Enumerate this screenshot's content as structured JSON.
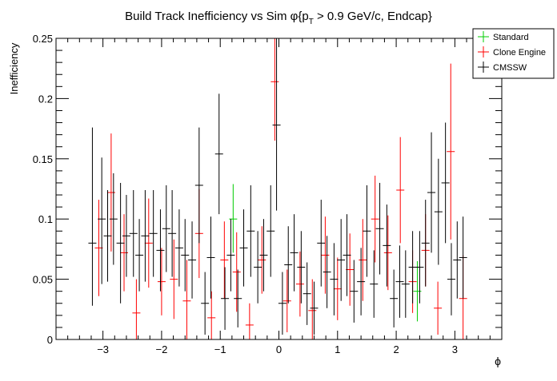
{
  "chart_data": {
    "type": "scatter",
    "title": "Build Track Inefficiency vs Sim φ{p",
    "title_sub": "T",
    "title_tail": " > 0.9 GeV/c, Endcap}",
    "xlabel": "ϕ",
    "ylabel": "Inefficiency",
    "xlim": [
      -3.8,
      3.8
    ],
    "ylim": [
      0,
      0.25
    ],
    "xticks": [
      -3,
      -2,
      -1,
      0,
      1,
      2,
      3
    ],
    "xtick_labels": [
      "−3",
      "−2",
      "−1",
      "0",
      "1",
      "2",
      "3"
    ],
    "yticks": [
      0,
      0.05,
      0.1,
      0.15,
      0.2,
      0.25
    ],
    "ytick_labels": [
      "0",
      "0.05",
      "0.1",
      "0.15",
      "0.2",
      "0.25"
    ],
    "legend_position": "top-right",
    "series": [
      {
        "name": "Standard",
        "color": "#00cc00",
        "points": [
          {
            "x": -0.78,
            "y": 0.1,
            "lo": 0.072,
            "hi": 0.129
          },
          {
            "x": 2.36,
            "y": 0.04,
            "lo": 0.015,
            "hi": 0.065
          }
        ]
      },
      {
        "name": "Clone Engine",
        "color": "#ff0000",
        "points": [
          {
            "x": -3.07,
            "y": 0.076,
            "lo": 0.036,
            "hi": 0.116
          },
          {
            "x": -2.86,
            "y": 0.122,
            "lo": 0.073,
            "hi": 0.171
          },
          {
            "x": -2.64,
            "y": 0.072,
            "lo": 0.04,
            "hi": 0.104
          },
          {
            "x": -2.43,
            "y": 0.022,
            "lo": 0.0,
            "hi": 0.05
          },
          {
            "x": -2.22,
            "y": 0.08,
            "lo": 0.043,
            "hi": 0.117
          },
          {
            "x": -2.0,
            "y": 0.048,
            "lo": 0.02,
            "hi": 0.076
          },
          {
            "x": -1.79,
            "y": 0.05,
            "lo": 0.017,
            "hi": 0.083
          },
          {
            "x": -1.57,
            "y": 0.032,
            "lo": 0.0,
            "hi": 0.066
          },
          {
            "x": -1.36,
            "y": 0.088,
            "lo": 0.051,
            "hi": 0.125
          },
          {
            "x": -1.15,
            "y": 0.018,
            "lo": 0.0,
            "hi": 0.04
          },
          {
            "x": -0.93,
            "y": 0.066,
            "lo": 0.034,
            "hi": 0.098
          },
          {
            "x": -0.72,
            "y": 0.056,
            "lo": 0.023,
            "hi": 0.089
          },
          {
            "x": -0.5,
            "y": 0.012,
            "lo": 0.0,
            "hi": 0.03
          },
          {
            "x": -0.29,
            "y": 0.066,
            "lo": 0.038,
            "hi": 0.094
          },
          {
            "x": -0.07,
            "y": 0.214,
            "lo": 0.165,
            "hi": 0.25
          },
          {
            "x": 0.14,
            "y": 0.032,
            "lo": 0.006,
            "hi": 0.058
          },
          {
            "x": 0.36,
            "y": 0.046,
            "lo": 0.019,
            "hi": 0.073
          },
          {
            "x": 0.57,
            "y": 0.024,
            "lo": 0.0,
            "hi": 0.05
          },
          {
            "x": 0.79,
            "y": 0.07,
            "lo": 0.038,
            "hi": 0.102
          },
          {
            "x": 1.0,
            "y": 0.042,
            "lo": 0.016,
            "hi": 0.068
          },
          {
            "x": 1.21,
            "y": 0.058,
            "lo": 0.028,
            "hi": 0.088
          },
          {
            "x": 1.43,
            "y": 0.066,
            "lo": 0.032,
            "hi": 0.1
          },
          {
            "x": 1.64,
            "y": 0.1,
            "lo": 0.064,
            "hi": 0.136
          },
          {
            "x": 1.86,
            "y": 0.072,
            "lo": 0.041,
            "hi": 0.103
          },
          {
            "x": 2.07,
            "y": 0.124,
            "lo": 0.08,
            "hi": 0.168
          },
          {
            "x": 2.28,
            "y": 0.048,
            "lo": 0.022,
            "hi": 0.074
          },
          {
            "x": 2.5,
            "y": 0.074,
            "lo": 0.044,
            "hi": 0.104
          },
          {
            "x": 2.71,
            "y": 0.026,
            "lo": 0.004,
            "hi": 0.048
          },
          {
            "x": 2.93,
            "y": 0.156,
            "lo": 0.083,
            "hi": 0.229
          },
          {
            "x": 3.14,
            "y": 0.034,
            "lo": 0.0,
            "hi": 0.07
          }
        ]
      },
      {
        "name": "CMSSW",
        "color": "#000000",
        "points": [
          {
            "x": -3.18,
            "y": 0.08,
            "lo": 0.028,
            "hi": 0.176
          },
          {
            "x": -3.02,
            "y": 0.1,
            "lo": 0.046,
            "hi": 0.151
          },
          {
            "x": -2.92,
            "y": 0.086,
            "lo": 0.048,
            "hi": 0.124
          },
          {
            "x": -2.82,
            "y": 0.1,
            "lo": 0.062,
            "hi": 0.138
          },
          {
            "x": -2.7,
            "y": 0.08,
            "lo": 0.03,
            "hi": 0.13
          },
          {
            "x": -2.6,
            "y": 0.086,
            "lo": 0.052,
            "hi": 0.12
          },
          {
            "x": -2.48,
            "y": 0.088,
            "lo": 0.052,
            "hi": 0.124
          },
          {
            "x": -2.38,
            "y": 0.07,
            "lo": 0.04,
            "hi": 0.1
          },
          {
            "x": -2.28,
            "y": 0.086,
            "lo": 0.048,
            "hi": 0.124
          },
          {
            "x": -2.14,
            "y": 0.088,
            "lo": 0.052,
            "hi": 0.124
          },
          {
            "x": -2.02,
            "y": 0.074,
            "lo": 0.04,
            "hi": 0.108
          },
          {
            "x": -1.92,
            "y": 0.092,
            "lo": 0.056,
            "hi": 0.128
          },
          {
            "x": -1.82,
            "y": 0.088,
            "lo": 0.052,
            "hi": 0.124
          },
          {
            "x": -1.7,
            "y": 0.076,
            "lo": 0.044,
            "hi": 0.108
          },
          {
            "x": -1.6,
            "y": 0.07,
            "lo": 0.04,
            "hi": 0.1
          },
          {
            "x": -1.48,
            "y": 0.066,
            "lo": 0.034,
            "hi": 0.098
          },
          {
            "x": -1.36,
            "y": 0.128,
            "lo": 0.08,
            "hi": 0.176
          },
          {
            "x": -1.26,
            "y": 0.03,
            "lo": 0.004,
            "hi": 0.056
          },
          {
            "x": -1.16,
            "y": 0.068,
            "lo": 0.034,
            "hi": 0.102
          },
          {
            "x": -1.02,
            "y": 0.154,
            "lo": 0.104,
            "hi": 0.204
          },
          {
            "x": -0.92,
            "y": 0.034,
            "lo": 0.008,
            "hi": 0.06
          },
          {
            "x": -0.82,
            "y": 0.07,
            "lo": 0.04,
            "hi": 0.1
          },
          {
            "x": -0.7,
            "y": 0.034,
            "lo": 0.01,
            "hi": 0.058
          },
          {
            "x": -0.6,
            "y": 0.076,
            "lo": 0.044,
            "hi": 0.108
          },
          {
            "x": -0.48,
            "y": 0.09,
            "lo": 0.052,
            "hi": 0.128
          },
          {
            "x": -0.36,
            "y": 0.06,
            "lo": 0.03,
            "hi": 0.09
          },
          {
            "x": -0.26,
            "y": 0.07,
            "lo": 0.04,
            "hi": 0.1
          },
          {
            "x": -0.14,
            "y": 0.09,
            "lo": 0.052,
            "hi": 0.128
          },
          {
            "x": -0.04,
            "y": 0.178,
            "lo": 0.107,
            "hi": 0.25
          },
          {
            "x": 0.06,
            "y": 0.03,
            "lo": 0.004,
            "hi": 0.056
          },
          {
            "x": 0.16,
            "y": 0.062,
            "lo": 0.03,
            "hi": 0.094
          },
          {
            "x": 0.26,
            "y": 0.072,
            "lo": 0.04,
            "hi": 0.104
          },
          {
            "x": 0.38,
            "y": 0.06,
            "lo": 0.03,
            "hi": 0.09
          },
          {
            "x": 0.48,
            "y": 0.038,
            "lo": 0.012,
            "hi": 0.064
          },
          {
            "x": 0.6,
            "y": 0.026,
            "lo": 0.004,
            "hi": 0.048
          },
          {
            "x": 0.72,
            "y": 0.08,
            "lo": 0.044,
            "hi": 0.116
          },
          {
            "x": 0.82,
            "y": 0.056,
            "lo": 0.026,
            "hi": 0.086
          },
          {
            "x": 0.94,
            "y": 0.05,
            "lo": 0.02,
            "hi": 0.08
          },
          {
            "x": 1.06,
            "y": 0.066,
            "lo": 0.032,
            "hi": 0.1
          },
          {
            "x": 1.16,
            "y": 0.07,
            "lo": 0.036,
            "hi": 0.104
          },
          {
            "x": 1.28,
            "y": 0.04,
            "lo": 0.014,
            "hi": 0.066
          },
          {
            "x": 1.4,
            "y": 0.048,
            "lo": 0.02,
            "hi": 0.076
          },
          {
            "x": 1.5,
            "y": 0.09,
            "lo": 0.052,
            "hi": 0.128
          },
          {
            "x": 1.62,
            "y": 0.046,
            "lo": 0.018,
            "hi": 0.074
          },
          {
            "x": 1.72,
            "y": 0.092,
            "lo": 0.054,
            "hi": 0.13
          },
          {
            "x": 1.84,
            "y": 0.078,
            "lo": 0.044,
            "hi": 0.112
          },
          {
            "x": 1.96,
            "y": 0.034,
            "lo": 0.01,
            "hi": 0.058
          },
          {
            "x": 2.06,
            "y": 0.048,
            "lo": 0.018,
            "hi": 0.078
          },
          {
            "x": 2.16,
            "y": 0.046,
            "lo": 0.018,
            "hi": 0.074
          },
          {
            "x": 2.28,
            "y": 0.06,
            "lo": 0.03,
            "hi": 0.09
          },
          {
            "x": 2.4,
            "y": 0.06,
            "lo": 0.03,
            "hi": 0.09
          },
          {
            "x": 2.5,
            "y": 0.08,
            "lo": 0.044,
            "hi": 0.116
          },
          {
            "x": 2.6,
            "y": 0.122,
            "lo": 0.072,
            "hi": 0.172
          },
          {
            "x": 2.72,
            "y": 0.106,
            "lo": 0.062,
            "hi": 0.15
          },
          {
            "x": 2.84,
            "y": 0.13,
            "lo": 0.08,
            "hi": 0.18
          },
          {
            "x": 2.94,
            "y": 0.05,
            "lo": 0.02,
            "hi": 0.08
          },
          {
            "x": 3.04,
            "y": 0.066,
            "lo": 0.034,
            "hi": 0.098
          },
          {
            "x": 3.14,
            "y": 0.068,
            "lo": 0.034,
            "hi": 0.102
          }
        ]
      }
    ]
  }
}
